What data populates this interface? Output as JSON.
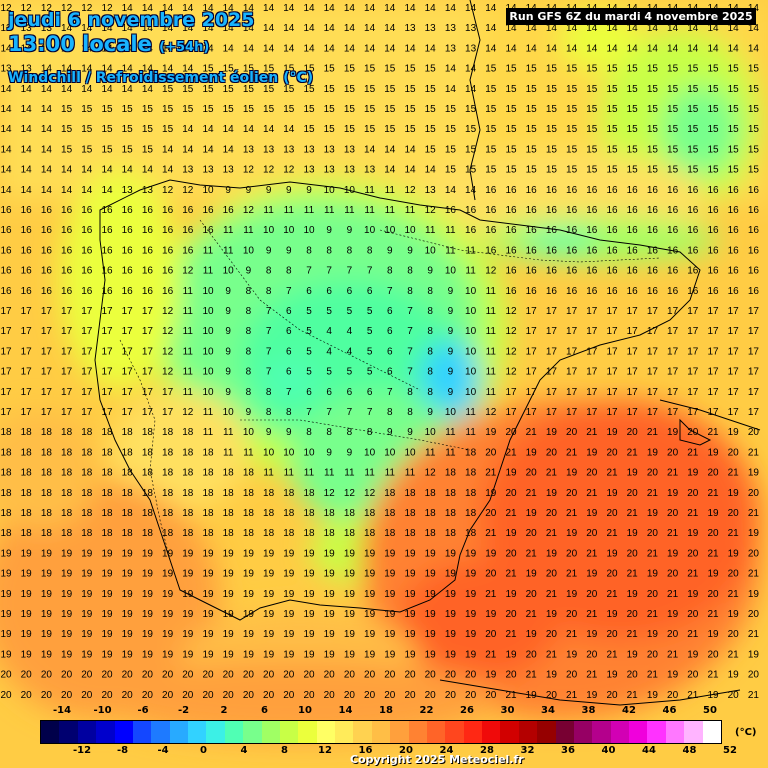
{
  "header": {
    "date": "jeudi 6 novembre 2025",
    "time": "13:00 locale",
    "offset": "(+54h)",
    "product": "Windchill / Refroidissement éolien (°C)"
  },
  "run_label": "Run GFS 6Z du mardi 4 novembre 2025",
  "copyright": "Copyright 2025 Meteociel.fr",
  "legend": {
    "unit": "(°C)",
    "upper_labels": [
      "-14",
      "-10",
      "-6",
      "-2",
      "2",
      "6",
      "10",
      "14",
      "18",
      "22",
      "26",
      "30",
      "34",
      "38",
      "42",
      "46",
      "50"
    ],
    "lower_labels": [
      "-12",
      "-8",
      "-4",
      "0",
      "4",
      "8",
      "12",
      "16",
      "20",
      "24",
      "28",
      "32",
      "36",
      "40",
      "44",
      "48",
      "52"
    ],
    "colors": [
      "#00004a",
      "#000070",
      "#0000a0",
      "#0000cc",
      "#0000ff",
      "#1447ff",
      "#1e7aff",
      "#28aaff",
      "#32d2ff",
      "#3cf0e6",
      "#50ffb4",
      "#78ff8c",
      "#a0ff64",
      "#c8ff46",
      "#ebff3c",
      "#ffff64",
      "#ffeb5a",
      "#ffd250",
      "#ffbe46",
      "#ffa03c",
      "#ff8232",
      "#ff6428",
      "#ff461e",
      "#ff2814",
      "#f00a0a",
      "#d20000",
      "#b40000",
      "#960000",
      "#780032",
      "#960064",
      "#b4008c",
      "#d200b4",
      "#f000dc",
      "#ff32ff",
      "#ff78ff",
      "#ffb4ff",
      "#ffffff"
    ]
  },
  "temperature_grid_note": "value grid of surface windchill values",
  "grid_rows": [
    "12 12 12 12 12 12 14 14 14 14 14 14 14 14 14 14 14 14 14 14 14 14 14 14",
    "13 13 13 14 14 14 14 14 14 14 14 14 14 14 14 14 14 14 14 14 13 13 13 13",
    "14 14 14 14 14 14 14 14 14 14 14 14 14 14 14 14 14 14 14 14 14 14 13 13",
    "13 13 14 14 14 14 14 14 14 14 15 15 15 15 15 15 15 15 15 15 15 15 14 14",
    "14 14 14 14 14 14 14 14 15 15 15 15 15 15 15 15 15 15 15 15 15 15 14 14",
    "14 14 14 15 15 15 15 15 15 15 15 15 15 15 15 15 15 15 15 15 15 15 15 15",
    "14 14 14 15 15 15 15 15 15 14 14 14 14 14 14 15 15 15 15 15 15 15 15 15",
    "14 14 14 15 15 15 15 15 14 14 14 14 13 13 13 13 13 13 14 14 14 15 15 15",
    "14 14 14 14 14 14 14 14 14 13 13 13 12 12 12 13 13 13 13 14 14 14 15 15",
    "14 14 14 14 14 14 13 13 12 12 10 9 9 9 9 9 10 10 11 11 12 13 14 14"
  ]
}
